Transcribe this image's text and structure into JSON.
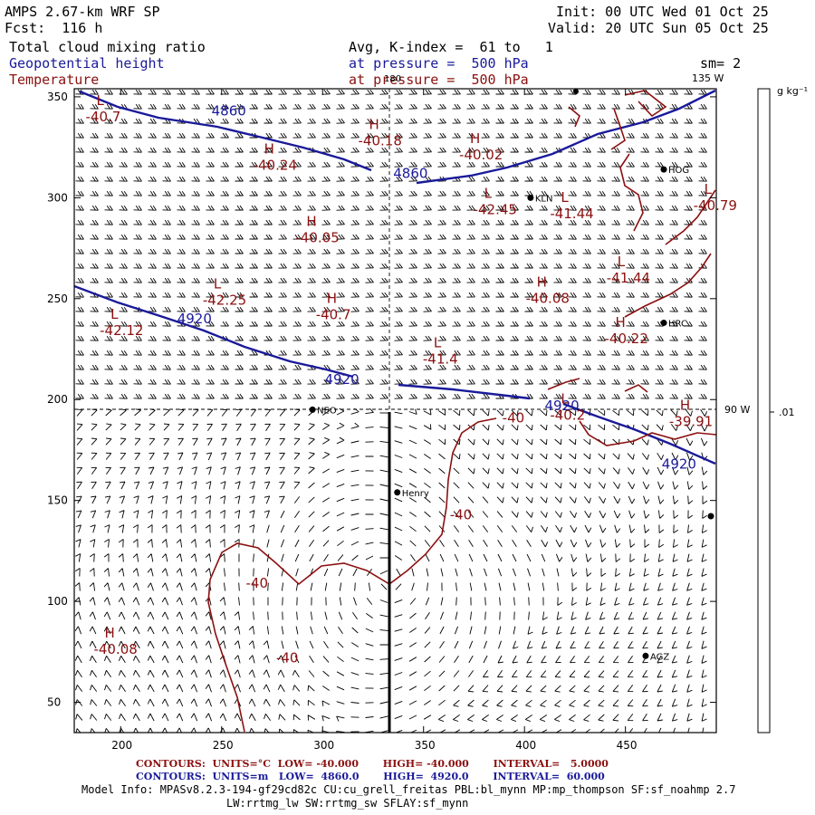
{
  "header": {
    "model": "AMPS 2.67-km WRF SP",
    "forecast": "Fcst:  116 h",
    "init": "Init: 00 UTC Wed 01 Oct 25",
    "valid": "Valid: 20 UTC Sun 05 Oct 25",
    "field1": "Total cloud mixing ratio",
    "field2": "Geopotential height",
    "field3": "Temperature",
    "avg": "Avg, K-index =  61 to   1",
    "pressure1": "at pressure =  500 hPa",
    "pressure2": "at pressure =  500 hPa",
    "smooth": "sm= 2"
  },
  "axes": {
    "x_ticks": [
      "200",
      "250",
      "300",
      "350",
      "400",
      "450"
    ],
    "y_ticks": [
      "350",
      "300",
      "250",
      "200",
      "150",
      "100",
      "50"
    ],
    "lon_top": "180",
    "lon_135": "135 W",
    "lon_90": "90 W"
  },
  "colorbar": {
    "units": "g kg⁻¹",
    "value": ".01"
  },
  "stations": [
    {
      "name": "KLN",
      "x": 403,
      "y": 300
    },
    {
      "name": "HOG",
      "x": 469,
      "y": 314
    },
    {
      "name": "HRC",
      "x": 469,
      "y": 238
    },
    {
      "name": "NEO",
      "x": 295,
      "y": 195
    },
    {
      "name": "Henry",
      "x": 337,
      "y": 154
    },
    {
      "name": "AGZ",
      "x": 460,
      "y": 73
    }
  ],
  "height_labels": [
    {
      "text": "4860",
      "x": 245,
      "y": 343
    },
    {
      "text": "4860",
      "x": 335,
      "y": 312
    },
    {
      "text": "4920",
      "x": 228,
      "y": 240
    },
    {
      "text": "4920",
      "x": 301,
      "y": 210
    },
    {
      "text": "4920",
      "x": 410,
      "y": 197
    },
    {
      "text": "4920",
      "x": 468,
      "y": 168
    }
  ],
  "temp_extrema": [
    {
      "kind": "L",
      "value": "-40.7",
      "x": 188,
      "y": 346
    },
    {
      "kind": "H",
      "value": "-40.24",
      "x": 271,
      "y": 322
    },
    {
      "kind": "H",
      "value": "-40.18",
      "x": 323,
      "y": 334
    },
    {
      "kind": "H",
      "value": "-40.02",
      "x": 373,
      "y": 327
    },
    {
      "kind": "L",
      "value": "-42.45",
      "x": 380,
      "y": 300
    },
    {
      "kind": "L",
      "value": "-41.44",
      "x": 418,
      "y": 298
    },
    {
      "kind": "L",
      "value": "-40.79",
      "x": 489,
      "y": 302
    },
    {
      "kind": "H",
      "value": "-40.05",
      "x": 292,
      "y": 286
    },
    {
      "kind": "L",
      "value": "-42.25",
      "x": 246,
      "y": 255
    },
    {
      "kind": "H",
      "value": "-40.7",
      "x": 302,
      "y": 248
    },
    {
      "kind": "H",
      "value": "-40.08",
      "x": 406,
      "y": 256
    },
    {
      "kind": "L",
      "value": "-41.44",
      "x": 446,
      "y": 266
    },
    {
      "kind": "L",
      "value": "-42.12",
      "x": 195,
      "y": 240
    },
    {
      "kind": "L",
      "value": "-41.4",
      "x": 355,
      "y": 226
    },
    {
      "kind": "H",
      "value": "-40.22",
      "x": 445,
      "y": 236
    },
    {
      "kind": "L",
      "value": "-40.2",
      "x": 418,
      "y": 198
    },
    {
      "kind": "H",
      "value": "-39.91",
      "x": 477,
      "y": 195
    },
    {
      "kind": "H",
      "value": "-40.08",
      "x": 192,
      "y": 82
    }
  ],
  "temp_labels": [
    {
      "text": "-40",
      "x": 389,
      "y": 191
    },
    {
      "text": "-40",
      "x": 363,
      "y": 143
    },
    {
      "text": "-40",
      "x": 262,
      "y": 109
    },
    {
      "text": "-40",
      "x": 277,
      "y": 72
    }
  ],
  "contours": {
    "temp_line": "CONTOURS:  UNITS=°C  LOW= -40.000       HIGH= -40.000       INTERVAL=   5.0000",
    "height_line": "CONTOURS:  UNITS=m   LOW=  4860.0       HIGH=  4920.0       INTERVAL=  60.000"
  },
  "model_info": {
    "line1": "Model Info: MPASv8.2.3-194-gf29cd82c CU:cu_grell_freitas PBL:bl_mynn MP:mp_thompson SF:sf_noahmp 2.7",
    "line2": "LW:rrtmg_lw SW:rrtmg_sw SFLAY:sf_mynn"
  },
  "colors": {
    "height": "#1a1a9a",
    "temperature": "#8b1010",
    "axes": "#000000"
  }
}
